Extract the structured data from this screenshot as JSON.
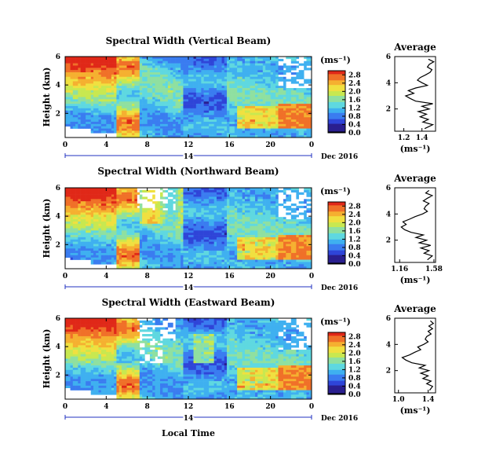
{
  "colors": {
    "colormap": [
      "#000000",
      "#2a1f8f",
      "#2f45d8",
      "#3a7cf0",
      "#3fb0f0",
      "#5fd8e0",
      "#8fe0a0",
      "#c8e850",
      "#f0e040",
      "#f5b030",
      "#f07028",
      "#e02818"
    ],
    "date_bar": "#2030c0"
  },
  "chart_data": [
    {
      "type": "heatmap",
      "title": "Spectral Width (Vertical Beam)",
      "xlabel": "",
      "ylabel": "Height (km)",
      "x_ticks": [
        "0",
        "4",
        "8",
        "12",
        "16",
        "20",
        "0"
      ],
      "y_ticks": [
        "2",
        "4",
        "6"
      ],
      "xlim": [
        0,
        24
      ],
      "date_tick": "14",
      "date_label": "Dec 2016",
      "colorbar": {
        "unit": "(ms⁻¹)",
        "ticks": [
          "0.0",
          "0.4",
          "0.8",
          "1.2",
          "1.6",
          "2.0",
          "2.4",
          "2.8"
        ],
        "range": [
          0.0,
          3.0
        ]
      },
      "average": {
        "title": "Average",
        "xlabel": "(ms⁻¹)",
        "x_ticks": [
          "1.2",
          "1.4"
        ],
        "y_ticks": [
          "2",
          "4",
          "6"
        ],
        "xlim": [
          1.1,
          1.55
        ],
        "ylim": [
          0.3,
          6.0
        ],
        "height": [
          0.5,
          0.8,
          1.0,
          1.2,
          1.4,
          1.6,
          1.8,
          2.0,
          2.2,
          2.4,
          2.6,
          2.8,
          3.0,
          3.2,
          3.4,
          3.6,
          3.8,
          4.0,
          4.2,
          4.4,
          4.6,
          4.8,
          5.0,
          5.2,
          5.4,
          5.6,
          5.8
        ],
        "value": [
          1.43,
          1.52,
          1.41,
          1.47,
          1.38,
          1.45,
          1.36,
          1.48,
          1.4,
          1.52,
          1.33,
          1.27,
          1.22,
          1.31,
          1.25,
          1.33,
          1.46,
          1.4,
          1.35,
          1.38,
          1.44,
          1.49,
          1.51,
          1.46,
          1.48,
          1.53,
          1.47
        ]
      }
    },
    {
      "type": "heatmap",
      "title": "Spectral Width (Northward Beam)",
      "xlabel": "",
      "ylabel": "Height (km)",
      "x_ticks": [
        "0",
        "4",
        "8",
        "12",
        "16",
        "20",
        "0"
      ],
      "y_ticks": [
        "2",
        "4",
        "6"
      ],
      "xlim": [
        0,
        24
      ],
      "date_tick": "14",
      "date_label": "Dec 2016",
      "colorbar": {
        "unit": "(ms⁻¹)",
        "ticks": [
          "0.0",
          "0.4",
          "0.8",
          "1.2",
          "1.6",
          "2.0",
          "2.4",
          "2.8"
        ],
        "range": [
          0.0,
          3.0
        ]
      },
      "average": {
        "title": "Average",
        "xlabel": "(ms⁻¹)",
        "x_ticks": [
          "1.16",
          "1.58"
        ],
        "y_ticks": [
          "2",
          "4",
          "6"
        ],
        "xlim": [
          1.1,
          1.6
        ],
        "ylim": [
          0.3,
          6.0
        ],
        "height": [
          0.5,
          0.8,
          1.0,
          1.2,
          1.4,
          1.6,
          1.8,
          2.0,
          2.2,
          2.4,
          2.6,
          2.8,
          3.0,
          3.2,
          3.4,
          3.6,
          3.8,
          4.0,
          4.2,
          4.4,
          4.6,
          4.8,
          5.0,
          5.2,
          5.4,
          5.6,
          5.8
        ],
        "value": [
          1.5,
          1.56,
          1.46,
          1.52,
          1.42,
          1.54,
          1.4,
          1.49,
          1.36,
          1.45,
          1.3,
          1.22,
          1.18,
          1.24,
          1.2,
          1.28,
          1.35,
          1.44,
          1.5,
          1.46,
          1.48,
          1.52,
          1.45,
          1.5,
          1.56,
          1.48,
          1.52
        ]
      }
    },
    {
      "type": "heatmap",
      "title": "Spectral Width (Eastward Beam)",
      "xlabel": "Local Time",
      "ylabel": "Height (km)",
      "x_ticks": [
        "0",
        "4",
        "8",
        "12",
        "16",
        "20",
        "0"
      ],
      "y_ticks": [
        "2",
        "4",
        "6"
      ],
      "xlim": [
        0,
        24
      ],
      "date_tick": "14",
      "date_label": "Dec 2016",
      "colorbar": {
        "unit": "(ms⁻¹)",
        "ticks": [
          "0.0",
          "0.4",
          "0.8",
          "1.2",
          "1.6",
          "2.0",
          "2.4",
          "2.8"
        ],
        "range": [
          0.0,
          3.0
        ]
      },
      "average": {
        "title": "Average",
        "xlabel": "(ms⁻¹)",
        "x_ticks": [
          "1.0",
          "1.4"
        ],
        "y_ticks": [
          "2",
          "4",
          "6"
        ],
        "xlim": [
          0.95,
          1.5
        ],
        "ylim": [
          0.3,
          6.0
        ],
        "height": [
          0.5,
          0.8,
          1.0,
          1.2,
          1.4,
          1.6,
          1.8,
          2.0,
          2.2,
          2.4,
          2.6,
          2.8,
          3.0,
          3.2,
          3.4,
          3.6,
          3.8,
          4.0,
          4.2,
          4.4,
          4.6,
          4.8,
          5.0,
          5.2,
          5.4,
          5.6,
          5.8
        ],
        "value": [
          1.42,
          1.46,
          1.38,
          1.44,
          1.33,
          1.4,
          1.3,
          1.41,
          1.28,
          1.36,
          1.18,
          1.1,
          1.05,
          1.15,
          1.22,
          1.3,
          1.26,
          1.34,
          1.4,
          1.36,
          1.38,
          1.44,
          1.4,
          1.46,
          1.41,
          1.47,
          1.43
        ]
      }
    }
  ]
}
